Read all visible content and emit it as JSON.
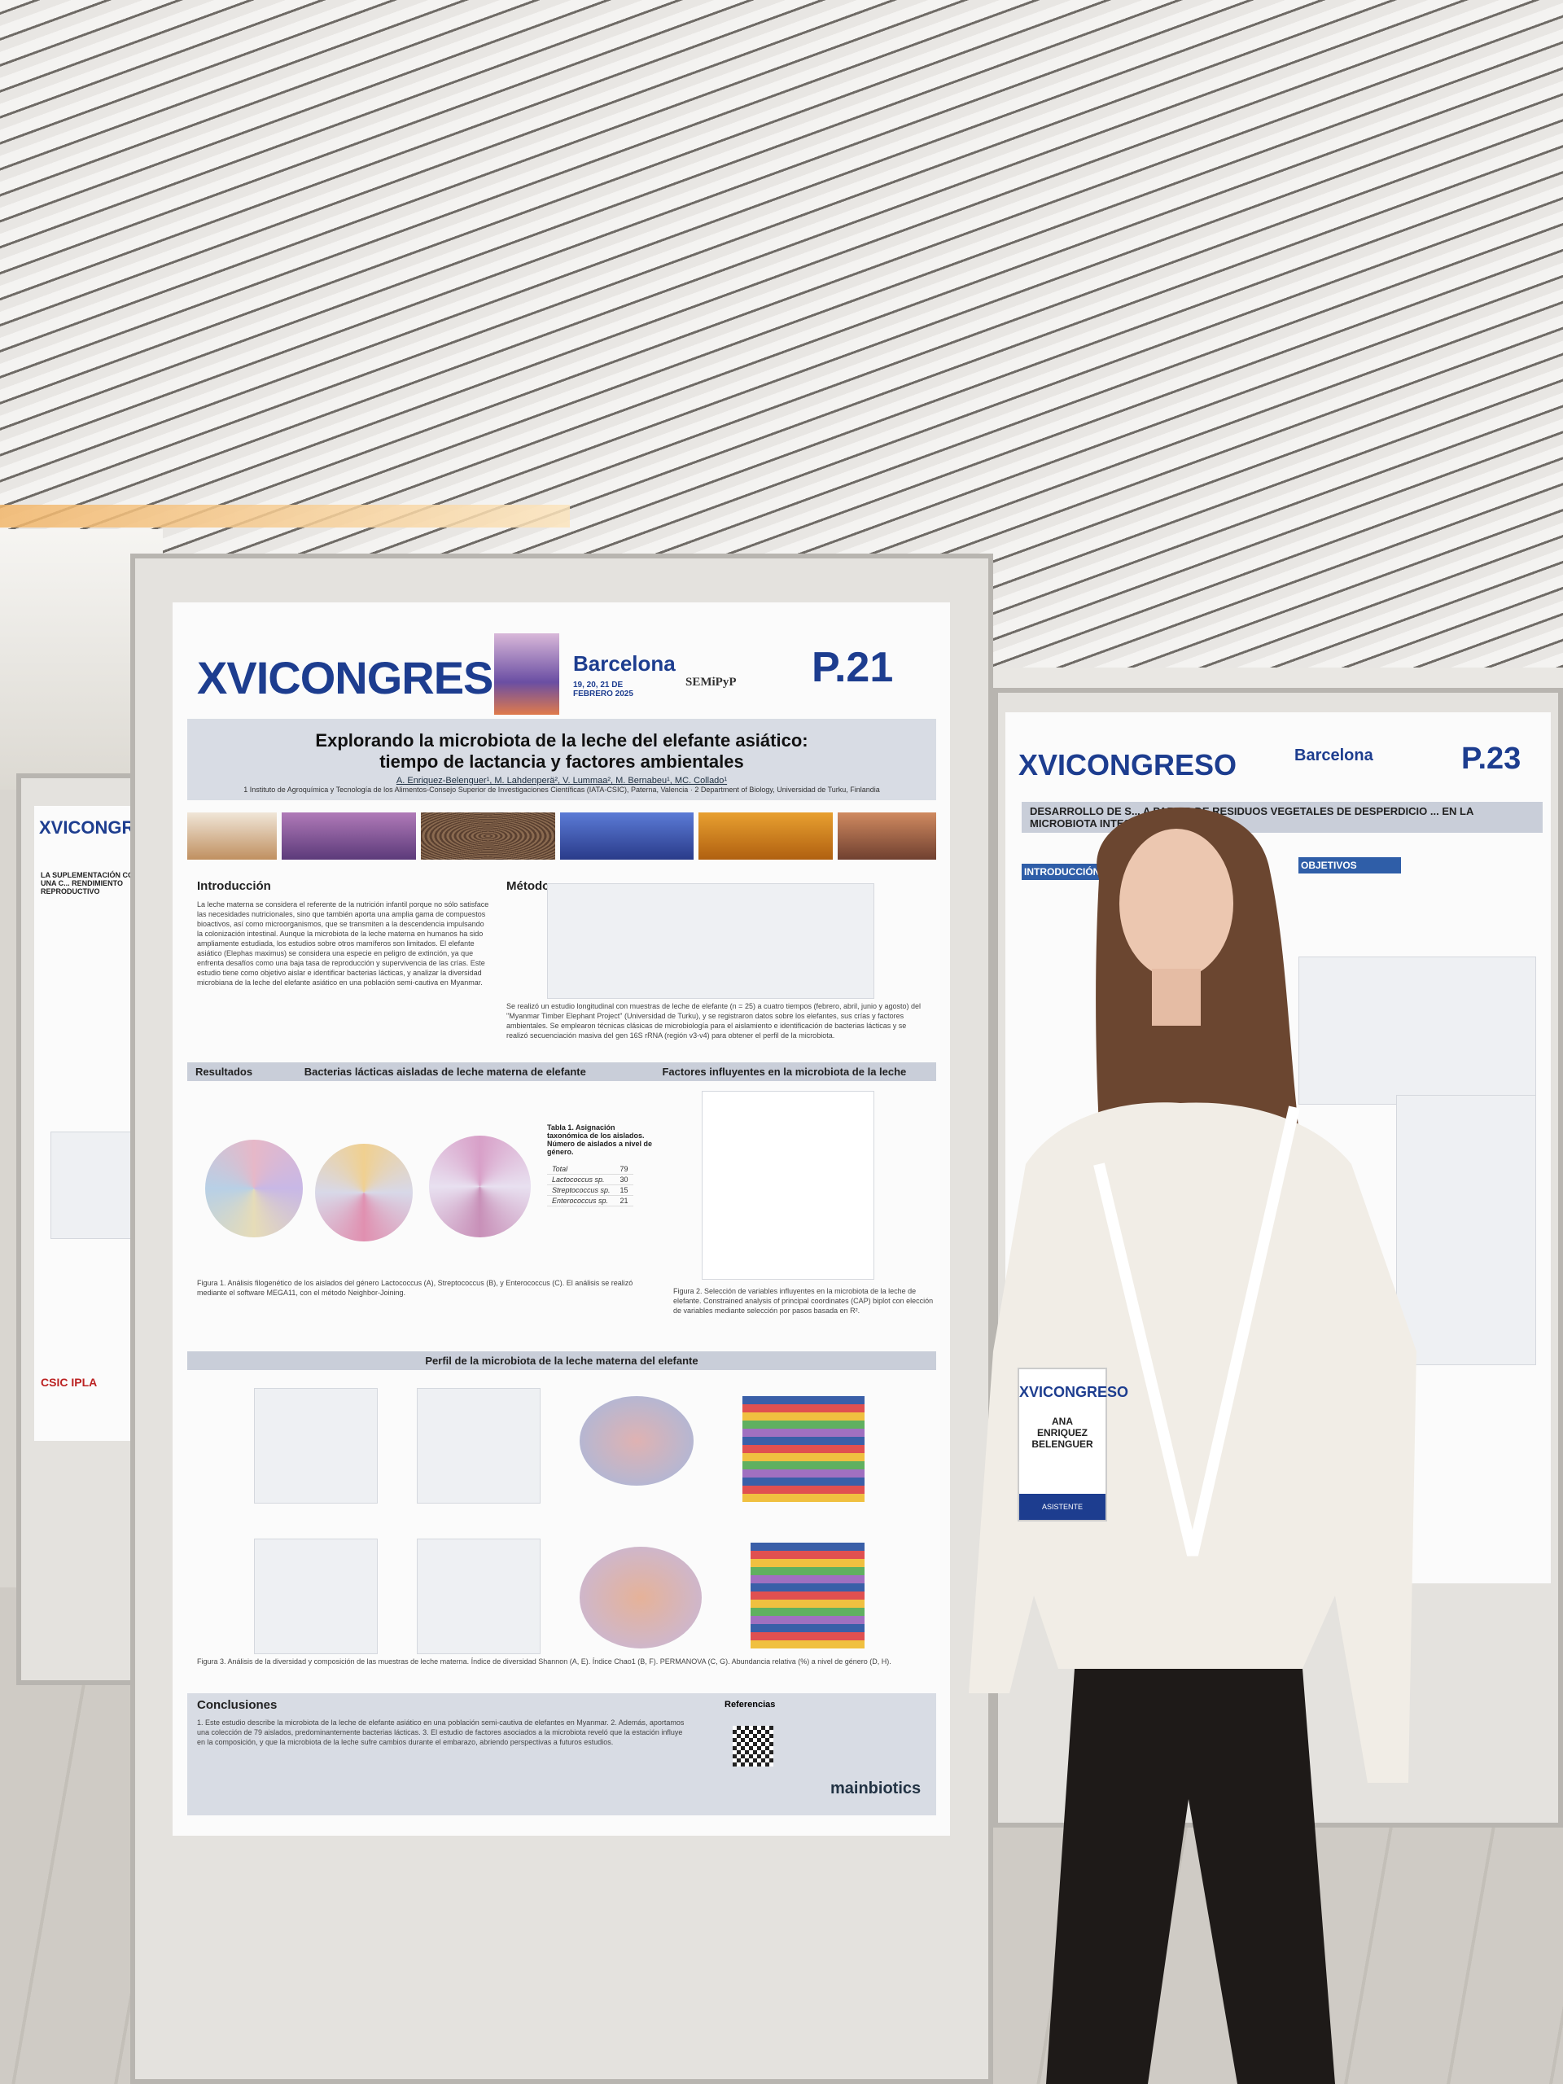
{
  "left_poster": {
    "logo": "XVICONGRESO",
    "title": "LA SUPLEMENTACIÓN CON UNA C... RENDIMIENTO REPRODUCTIVO",
    "footer": "CSIC IPLA"
  },
  "right_poster": {
    "logo": "XVICONGRESO",
    "city": "Barcelona",
    "number": "P.23",
    "title": "DESARROLLO DE S... A PARTIR DE RESIDUOS VEGETALES DE DESPERDICIO ... EN LA MICROBIOTA INTESTINAL",
    "sections": [
      "INTRODUCCIÓN",
      "OBJETIVOS"
    ]
  },
  "main_poster": {
    "logo": "XVICONGRESO",
    "city": "Barcelona",
    "dates": "19, 20, 21 DE FEBRERO 2025",
    "society": "SEMiPyP",
    "number": "P.21",
    "title": [
      "Explorando la microbiota de la leche del elefante asiático:",
      "tiempo de lactancia y factores ambientales"
    ],
    "authors": "A. Enriquez-Belenguer¹, M. Lahdenperä², V. Lummaa², M. Bernabeu¹, MC. Collado¹",
    "affiliation": "1 Instituto de Agroquímica y Tecnología de los Alimentos-Consejo Superior de Investigaciones Científicas (IATA-CSIC), Paterna, Valencia · 2 Department of Biology, Universidad de Turku, Finlandia",
    "sections": [
      "Introducción",
      "Métodos",
      "Resultados",
      "Bacterias lácticas aisladas de leche materna de elefante",
      "Factores influyentes en la microbiota de la leche",
      "Perfil de la microbiota de la leche materna del elefante",
      "Conclusiones",
      "Referencias"
    ],
    "intro": "La leche materna se considera el referente de la nutrición infantil porque no sólo satisface las necesidades nutricionales, sino que también aporta una amplia gama de compuestos bioactivos, así como microorganismos, que se transmiten a la descendencia impulsando la colonización intestinal. Aunque la microbiota de la leche materna en humanos ha sido ampliamente estudiada, los estudios sobre otros mamíferos son limitados. El elefante asiático (Elephas maximus) se considera una especie en peligro de extinción, ya que enfrenta desafíos como una baja tasa de reproducción y supervivencia de las crías. Este estudio tiene como objetivo aislar e identificar bacterias lácticas, y analizar la diversidad microbiana de la leche del elefante asiático en una población semi-cautiva en Myanmar.",
    "methods": "Se realizó un estudio longitudinal con muestras de leche de elefante (n = 25) a cuatro tiempos (febrero, abril, junio y agosto) del \"Myanmar Timber Elephant Project\" (Universidad de Turku), y se registraron datos sobre los elefantes, sus crías y factores ambientales. Se emplearon técnicas clásicas de microbiología para el aislamiento e identificación de bacterias lácticas y se realizó secuenciación masiva del gen 16S rRNA (región v3-v4) para obtener el perfil de la microbiota.",
    "table": {
      "caption": "Tabla 1. Asignación taxonómica de los aislados. Número de aislados a nivel de género.",
      "rows": [
        [
          "Total",
          "79"
        ],
        [
          "Lactococcus sp.",
          "30"
        ],
        [
          "Streptococcus sp.",
          "15"
        ],
        [
          "Enterococcus sp.",
          "21"
        ]
      ]
    },
    "captions": [
      "Figura 1. Análisis filogenético de los aislados del género Lactococcus (A), Streptococcus (B), y Enterococcus (C). El análisis se realizó mediante el software MEGA11, con el método Neighbor-Joining.",
      "Figura 2. Selección de variables influyentes en la microbiota de la leche de elefante. Constrained analysis of principal coordinates (CAP) biplot con elección de variables mediante selección por pasos basada en R².",
      "Figura 3. Análisis de la diversidad y composición de las muestras de leche materna. Índice de diversidad Shannon (A, E). Índice Chao1 (B, F). PERMANOVA (C, G). Abundancia relativa (%) a nivel de género (D, H)."
    ],
    "conclusions": "1. Este estudio describe la microbiota de la leche de elefante asiático en una población semi-cautiva de elefantes en Myanmar. 2. Además, aportamos una colección de 79 aislados, predominantemente bacterias lácticas. 3. El estudio de factores asociados a la microbiota reveló que la estación influye en la composición, y que la microbiota de la leche sufre cambios durante el embarazo, abriendo perspectivas a futuros estudios.",
    "sponsor": "mainbiotics"
  },
  "badge": {
    "logo": "XVICONGRESO",
    "name": [
      "ANA",
      "ENRIQUEZ",
      "BELENGUER"
    ],
    "role": "ASISTENTE"
  }
}
